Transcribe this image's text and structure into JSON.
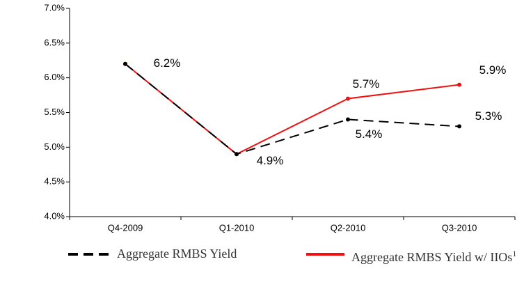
{
  "chart_data": {
    "type": "line",
    "categories": [
      "Q4-2009",
      "Q1-2010",
      "Q2-2010",
      "Q3-2010"
    ],
    "series": [
      {
        "name": "Aggregate RMBS Yield",
        "color": "#000000",
        "dash": true,
        "values": [
          6.2,
          4.9,
          5.4,
          5.3
        ],
        "value_labels": [
          "6.2%",
          "4.9%",
          "5.4%",
          "5.3%"
        ]
      },
      {
        "name": "Aggregate RMBS Yield w/ IIOs",
        "footnote_marker": "1",
        "color": "#ee1111",
        "dash": false,
        "values": [
          6.2,
          4.9,
          5.7,
          5.9
        ],
        "value_labels": [
          null,
          null,
          "5.7%",
          "5.9%"
        ]
      }
    ],
    "ylim": [
      4,
      7
    ],
    "yticks": [
      {
        "value": 4,
        "label": "4.0%"
      },
      {
        "value": 4.5,
        "label": "4.5%"
      },
      {
        "value": 5,
        "label": "5.0%"
      },
      {
        "value": 5.5,
        "label": "5.5%"
      },
      {
        "value": 6,
        "label": "6.0%"
      },
      {
        "value": 6.5,
        "label": "6.5%"
      },
      {
        "value": 7,
        "label": "7.0%"
      }
    ],
    "grid": false
  }
}
